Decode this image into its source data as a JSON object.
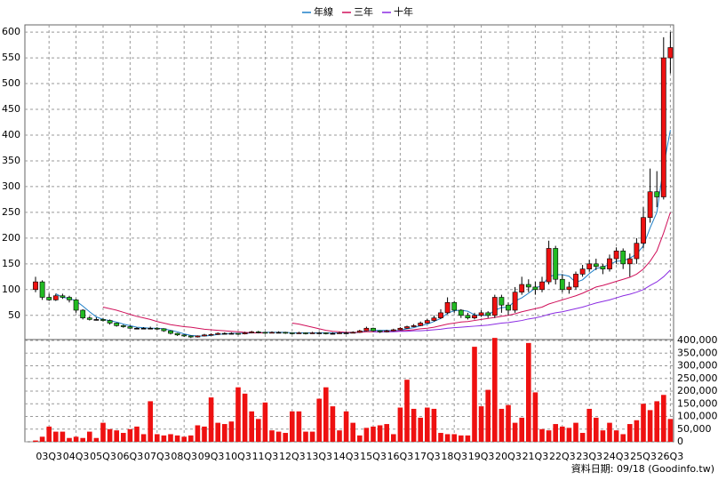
{
  "chart_data": {
    "type": "candlestick",
    "legend_position": "top",
    "grid": true,
    "categories": [
      null,
      null,
      "03Q3",
      null,
      null,
      null,
      "04Q3",
      null,
      null,
      null,
      "05Q3",
      null,
      null,
      null,
      "06Q3",
      null,
      null,
      null,
      "07Q3",
      null,
      null,
      null,
      "08Q3",
      null,
      null,
      null,
      "09Q3",
      null,
      null,
      null,
      "10Q3",
      null,
      null,
      null,
      "11Q3",
      null,
      null,
      null,
      "12Q3",
      null,
      null,
      null,
      "13Q3",
      null,
      null,
      null,
      "14Q3",
      null,
      null,
      null,
      "15Q3",
      null,
      null,
      null,
      "16Q3",
      null,
      null,
      null,
      "17Q3",
      null,
      null,
      null,
      "18Q3",
      null,
      null,
      null,
      "19Q3",
      null,
      null,
      null,
      "20Q3",
      null,
      null,
      null,
      "21Q3",
      null,
      null,
      null,
      "22Q3",
      null,
      null,
      null,
      "23Q3",
      null,
      null,
      null,
      "24Q3",
      null,
      null,
      null,
      "25Q3",
      null,
      null,
      null,
      "26Q3"
    ],
    "open": [
      100,
      115,
      85,
      80,
      88,
      85,
      80,
      60,
      45,
      42,
      42,
      40,
      35,
      30,
      28,
      25,
      25,
      25,
      25,
      24,
      20,
      15,
      12,
      10,
      8,
      10,
      12,
      13,
      15,
      15,
      15,
      14,
      16,
      18,
      17,
      16,
      17,
      17,
      16,
      15,
      16,
      15,
      16,
      16,
      15,
      15,
      16,
      16,
      17,
      20,
      25,
      20,
      18,
      20,
      22,
      25,
      28,
      30,
      35,
      40,
      45,
      55,
      75,
      60,
      50,
      45,
      50,
      55,
      50,
      85,
      70,
      60,
      95,
      110,
      105,
      100,
      115,
      180,
      120,
      100,
      105,
      130,
      140,
      150,
      145,
      140,
      160,
      175,
      150,
      160,
      190,
      240,
      290,
      280,
      550
    ],
    "high": [
      125,
      118,
      92,
      92,
      92,
      88,
      82,
      62,
      48,
      46,
      45,
      42,
      36,
      32,
      30,
      27,
      27,
      28,
      27,
      25,
      21,
      16,
      13,
      11,
      11,
      14,
      15,
      17,
      17,
      17,
      16,
      18,
      20,
      20,
      18,
      19,
      19,
      18,
      17,
      18,
      17,
      18,
      18,
      17,
      17,
      18,
      18,
      19,
      22,
      28,
      26,
      21,
      22,
      24,
      27,
      30,
      33,
      38,
      43,
      50,
      62,
      85,
      78,
      62,
      55,
      55,
      60,
      58,
      90,
      90,
      75,
      105,
      125,
      120,
      115,
      125,
      195,
      185,
      130,
      115,
      135,
      148,
      158,
      160,
      150,
      168,
      182,
      180,
      170,
      200,
      260,
      335,
      330,
      590,
      600
    ],
    "low": [
      95,
      80,
      78,
      78,
      82,
      75,
      55,
      42,
      40,
      40,
      38,
      32,
      28,
      26,
      24,
      23,
      23,
      23,
      22,
      18,
      13,
      10,
      8,
      6,
      7,
      9,
      11,
      12,
      13,
      13,
      12,
      13,
      15,
      15,
      14,
      15,
      15,
      14,
      13,
      14,
      13,
      14,
      14,
      13,
      13,
      14,
      14,
      15,
      16,
      19,
      18,
      16,
      17,
      19,
      21,
      24,
      27,
      29,
      34,
      38,
      43,
      52,
      55,
      45,
      42,
      42,
      47,
      45,
      45,
      55,
      50,
      55,
      90,
      95,
      90,
      95,
      110,
      110,
      95,
      92,
      100,
      125,
      135,
      138,
      130,
      135,
      150,
      140,
      125,
      150,
      180,
      230,
      260,
      275,
      520
    ],
    "close": [
      115,
      85,
      80,
      88,
      85,
      80,
      60,
      45,
      42,
      42,
      40,
      35,
      30,
      28,
      25,
      25,
      25,
      25,
      24,
      20,
      15,
      12,
      10,
      8,
      10,
      12,
      13,
      15,
      15,
      15,
      14,
      16,
      18,
      17,
      16,
      17,
      17,
      16,
      15,
      16,
      15,
      16,
      16,
      15,
      15,
      16,
      16,
      17,
      20,
      25,
      20,
      18,
      20,
      22,
      25,
      28,
      30,
      35,
      40,
      45,
      55,
      75,
      60,
      50,
      45,
      50,
      55,
      50,
      85,
      70,
      60,
      95,
      110,
      105,
      100,
      115,
      180,
      120,
      100,
      105,
      130,
      140,
      150,
      145,
      140,
      160,
      175,
      150,
      160,
      190,
      240,
      290,
      280,
      550,
      570
    ],
    "up_color": "#ee1111",
    "down_color": "#22bb22",
    "flat_color": "#000000",
    "ylim": [
      3,
      614
    ],
    "yticks": [
      50,
      100,
      150,
      200,
      250,
      300,
      350,
      400,
      450,
      500,
      550,
      600
    ],
    "series": [
      {
        "name": "年線",
        "color": "#1e7fc8",
        "values": [
          null,
          null,
          null,
          92,
          85,
          83,
          78,
          68,
          57,
          47,
          42,
          40,
          37,
          33,
          30,
          27,
          26,
          25,
          25,
          24,
          21,
          18,
          14,
          11,
          10,
          10,
          11,
          13,
          14,
          15,
          15,
          15,
          16,
          16,
          17,
          17,
          17,
          17,
          16,
          16,
          16,
          16,
          16,
          16,
          16,
          16,
          16,
          16,
          17,
          20,
          21,
          21,
          21,
          20,
          21,
          24,
          26,
          30,
          33,
          38,
          44,
          54,
          59,
          60,
          58,
          51,
          50,
          50,
          60,
          65,
          66,
          78,
          84,
          93,
          103,
          108,
          125,
          129,
          129,
          126,
          114,
          119,
          131,
          141,
          144,
          149,
          155,
          156,
          161,
          169,
          185,
          220,
          250,
          340,
          410
        ]
      },
      {
        "name": "三年",
        "color": "#d0105a",
        "values": [
          null,
          null,
          null,
          null,
          null,
          null,
          null,
          null,
          null,
          null,
          66,
          63,
          60,
          56,
          52,
          48,
          45,
          42,
          38,
          35,
          32,
          30,
          28,
          27,
          25,
          23,
          22,
          21,
          20,
          19,
          18,
          17,
          16,
          16,
          16,
          null,
          null,
          null,
          35,
          33,
          30,
          27,
          24,
          21,
          19,
          18,
          17,
          17,
          17,
          18,
          18,
          18,
          19,
          19,
          20,
          21,
          22,
          24,
          25,
          27,
          30,
          33,
          35,
          37,
          38,
          40,
          42,
          44,
          46,
          48,
          50,
          53,
          57,
          60,
          63,
          66,
          72,
          76,
          80,
          84,
          88,
          93,
          99,
          105,
          108,
          112,
          116,
          120,
          124,
          130,
          140,
          155,
          175,
          210,
          250
        ]
      },
      {
        "name": "十年",
        "color": "#8a2be2",
        "values": [
          null,
          null,
          null,
          null,
          null,
          null,
          null,
          null,
          null,
          null,
          null,
          null,
          null,
          null,
          null,
          null,
          null,
          null,
          null,
          null,
          null,
          null,
          null,
          null,
          null,
          null,
          null,
          null,
          null,
          null,
          null,
          null,
          null,
          null,
          null,
          null,
          null,
          null,
          null,
          null,
          null,
          null,
          null,
          null,
          null,
          null,
          null,
          null,
          null,
          null,
          18,
          18,
          18,
          18,
          19,
          19,
          20,
          20,
          21,
          22,
          23,
          25,
          26,
          27,
          28,
          29,
          30,
          31,
          33,
          35,
          36,
          38,
          40,
          43,
          45,
          48,
          52,
          55,
          57,
          60,
          63,
          66,
          70,
          74,
          77,
          80,
          84,
          88,
          91,
          95,
          100,
          108,
          115,
          125,
          138
        ]
      }
    ],
    "volume_color": "#ee1111",
    "volume": [
      5000,
      20000,
      60000,
      40000,
      40000,
      15000,
      20000,
      15000,
      40000,
      15000,
      75000,
      50000,
      45000,
      35000,
      50000,
      60000,
      30000,
      160000,
      30000,
      25000,
      30000,
      25000,
      20000,
      25000,
      65000,
      60000,
      175000,
      75000,
      70000,
      80000,
      215000,
      190000,
      120000,
      90000,
      155000,
      45000,
      40000,
      35000,
      120000,
      120000,
      40000,
      40000,
      170000,
      215000,
      140000,
      45000,
      120000,
      75000,
      25000,
      55000,
      60000,
      65000,
      70000,
      30000,
      135000,
      245000,
      130000,
      95000,
      135000,
      130000,
      35000,
      30000,
      30000,
      25000,
      25000,
      375000,
      140000,
      205000,
      410000,
      130000,
      145000,
      75000,
      95000,
      390000,
      195000,
      50000,
      45000,
      70000,
      60000,
      55000,
      75000,
      35000,
      130000,
      95000,
      45000,
      75000,
      45000,
      30000,
      70000,
      85000,
      150000,
      125000,
      160000,
      185000,
      90000
    ],
    "y2lim": [
      0,
      400000
    ],
    "y2ticks": [
      0,
      {
        "value": 50000,
        "label": "50,000"
      },
      {
        "value": 100000,
        "label": "100,000"
      },
      {
        "value": 150000,
        "label": "150,000"
      },
      {
        "value": 200000,
        "label": "200,000"
      },
      {
        "value": 250000,
        "label": "250,000"
      },
      {
        "value": 300000,
        "label": "300,000"
      },
      {
        "value": 350000,
        "label": "350,000"
      },
      {
        "value": 400000,
        "label": "400,000"
      }
    ],
    "footer": "資料日期: 09/18 (Goodinfo.tw)"
  }
}
